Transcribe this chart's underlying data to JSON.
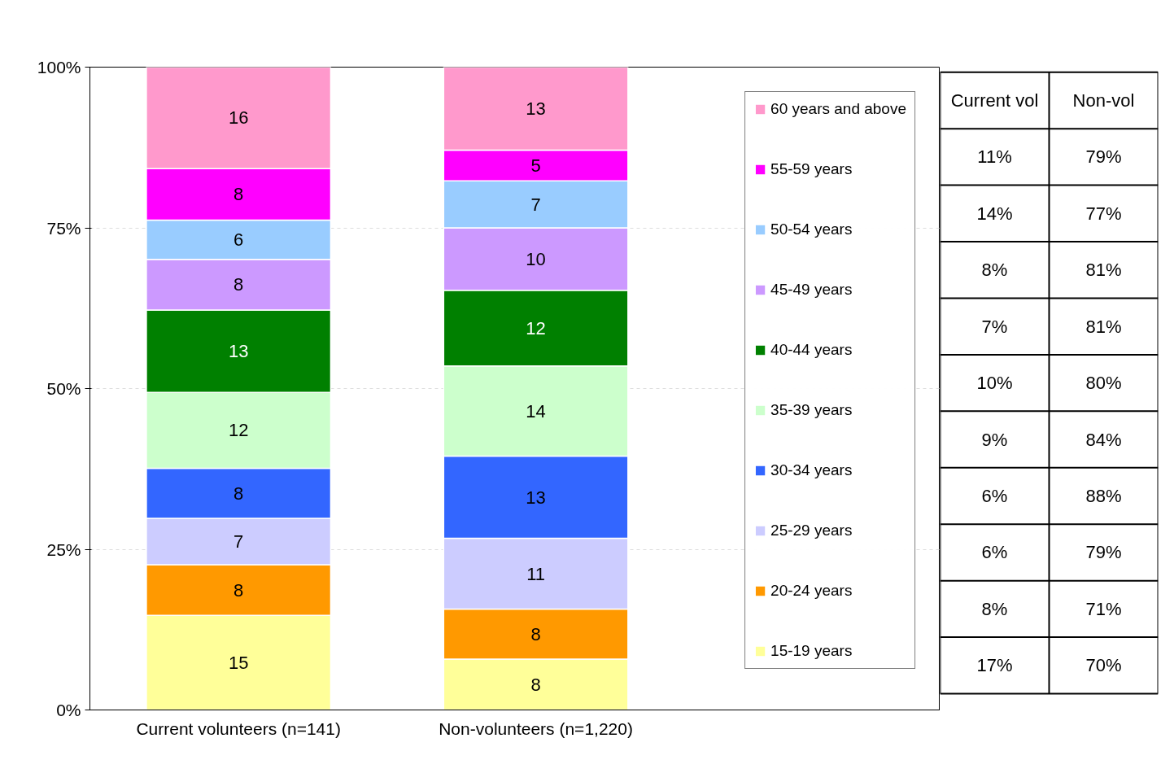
{
  "chart_data": [
    {
      "type": "bar",
      "stacked": true,
      "categories": [
        "Current volunteers (n=141)",
        "Non-volunteers (n=1,220)"
      ],
      "series": [
        {
          "name": "15-19 years",
          "color": "#ffff99",
          "values": [
            14.7,
            7.9
          ],
          "value_labels": [
            "15",
            "8"
          ]
        },
        {
          "name": "20-24 years",
          "color": "#ff9900",
          "values": [
            7.9,
            7.8
          ],
          "value_labels": [
            "8",
            "8"
          ]
        },
        {
          "name": "25-29 years",
          "color": "#ccccff",
          "values": [
            7.2,
            11.0
          ],
          "value_labels": [
            "7",
            "11"
          ]
        },
        {
          "name": "30-34 years",
          "color": "#3366ff",
          "values": [
            7.8,
            12.8
          ],
          "value_labels": [
            "8",
            "13"
          ]
        },
        {
          "name": "35-39 years",
          "color": "#ccffcc",
          "values": [
            11.8,
            14.0
          ],
          "value_labels": [
            "12",
            "14"
          ]
        },
        {
          "name": "40-44 years",
          "color": "#008000",
          "values": [
            12.8,
            11.8
          ],
          "value_labels": [
            "13",
            "12"
          ]
        },
        {
          "name": "45-49 years",
          "color": "#cc99ff",
          "values": [
            7.9,
            9.7
          ],
          "value_labels": [
            "8",
            "10"
          ]
        },
        {
          "name": "50-54 years",
          "color": "#99ccff",
          "values": [
            6.1,
            7.3
          ],
          "value_labels": [
            "6",
            "7"
          ]
        },
        {
          "name": "55-59 years",
          "color": "#ff00ff",
          "values": [
            8.0,
            4.8
          ],
          "value_labels": [
            "8",
            "5"
          ]
        },
        {
          "name": "60 years and above",
          "color": "#ff99cc",
          "values": [
            15.8,
            12.9
          ],
          "value_labels": [
            "16",
            "13"
          ]
        }
      ],
      "ylim": [
        0,
        100
      ],
      "yticks": [
        {
          "value": 0,
          "label": "0%"
        },
        {
          "value": 25,
          "label": "25%"
        },
        {
          "value": 50,
          "label": "50%"
        },
        {
          "value": 75,
          "label": "75%"
        },
        {
          "value": 100,
          "label": "100%"
        }
      ],
      "grid": "y",
      "legend": "right"
    },
    {
      "type": "other",
      "annotations": [
        "Current vol",
        "Non-vol",
        "11%",
        "79%",
        "14%",
        "77%",
        "8%",
        "81%",
        "7%",
        "81%",
        "10%",
        "80%",
        "9%",
        "84%",
        "6%",
        "88%",
        "6%",
        "79%",
        "8%",
        "71%",
        "17%",
        "70%"
      ]
    }
  ]
}
